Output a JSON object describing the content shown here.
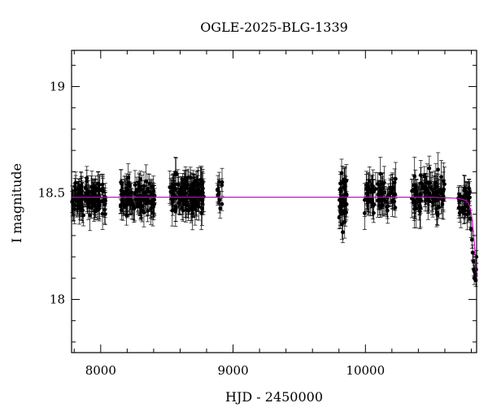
{
  "chart_data": {
    "type": "scatter",
    "title": "OGLE-2025-BLG-1339",
    "xlabel": "HJD - 2450000",
    "ylabel": "I magnitude",
    "xlim": [
      7780,
      10840
    ],
    "ylim": [
      19.17,
      17.75
    ],
    "y_inverted": true,
    "xticks": [
      8000,
      9000,
      10000
    ],
    "yticks": [
      18,
      18.5,
      19
    ],
    "ytick_labels": [
      "18",
      "18.5",
      "19"
    ],
    "grid": false,
    "legend": "none",
    "colors": {
      "points": "#000000",
      "model": "#cc00cc",
      "frame": "#000000"
    },
    "seasons": [
      {
        "start": 7780,
        "end": 8040,
        "mag": 18.48,
        "scatter": 0.035,
        "err": 0.055,
        "n": 120
      },
      {
        "start": 8150,
        "end": 8410,
        "mag": 18.48,
        "scatter": 0.035,
        "err": 0.055,
        "n": 120
      },
      {
        "start": 8520,
        "end": 8780,
        "mag": 18.49,
        "scatter": 0.04,
        "err": 0.06,
        "n": 140
      },
      {
        "start": 8880,
        "end": 8920,
        "mag": 18.49,
        "scatter": 0.04,
        "err": 0.05,
        "n": 12
      },
      {
        "start": 9800,
        "end": 9860,
        "mag": 18.45,
        "scatter": 0.07,
        "err": 0.06,
        "n": 40
      },
      {
        "start": 9990,
        "end": 10230,
        "mag": 18.49,
        "scatter": 0.04,
        "err": 0.06,
        "n": 80
      },
      {
        "start": 10350,
        "end": 10600,
        "mag": 18.49,
        "scatter": 0.045,
        "err": 0.065,
        "n": 90
      },
      {
        "start": 10700,
        "end": 10790,
        "mag": 18.46,
        "scatter": 0.04,
        "err": 0.055,
        "n": 35
      }
    ],
    "rise_points": [
      {
        "x": 10792,
        "y": 18.38,
        "err": 0.04
      },
      {
        "x": 10798,
        "y": 18.33,
        "err": 0.04
      },
      {
        "x": 10805,
        "y": 18.28,
        "err": 0.04
      },
      {
        "x": 10810,
        "y": 18.22,
        "err": 0.035
      },
      {
        "x": 10815,
        "y": 18.18,
        "err": 0.035
      },
      {
        "x": 10818,
        "y": 18.14,
        "err": 0.03
      },
      {
        "x": 10822,
        "y": 18.1,
        "err": 0.03
      },
      {
        "x": 10825,
        "y": 18.13,
        "err": 0.03
      },
      {
        "x": 10828,
        "y": 18.18,
        "err": 0.03
      },
      {
        "x": 10831,
        "y": 18.12,
        "err": 0.03
      },
      {
        "x": 10834,
        "y": 18.09,
        "err": 0.03
      },
      {
        "x": 10836,
        "y": 18.14,
        "err": 0.03
      },
      {
        "x": 10838,
        "y": 18.2,
        "err": 0.03
      }
    ],
    "model": {
      "type": "line",
      "baseline_mag": 18.48,
      "points": [
        [
          7780,
          18.48
        ],
        [
          10500,
          18.48
        ],
        [
          10700,
          18.475
        ],
        [
          10760,
          18.465
        ],
        [
          10780,
          18.45
        ],
        [
          10795,
          18.42
        ],
        [
          10805,
          18.38
        ],
        [
          10815,
          18.32
        ],
        [
          10822,
          18.27
        ],
        [
          10828,
          18.22
        ],
        [
          10832,
          18.18
        ],
        [
          10836,
          18.14
        ],
        [
          10840,
          18.11
        ]
      ]
    }
  }
}
